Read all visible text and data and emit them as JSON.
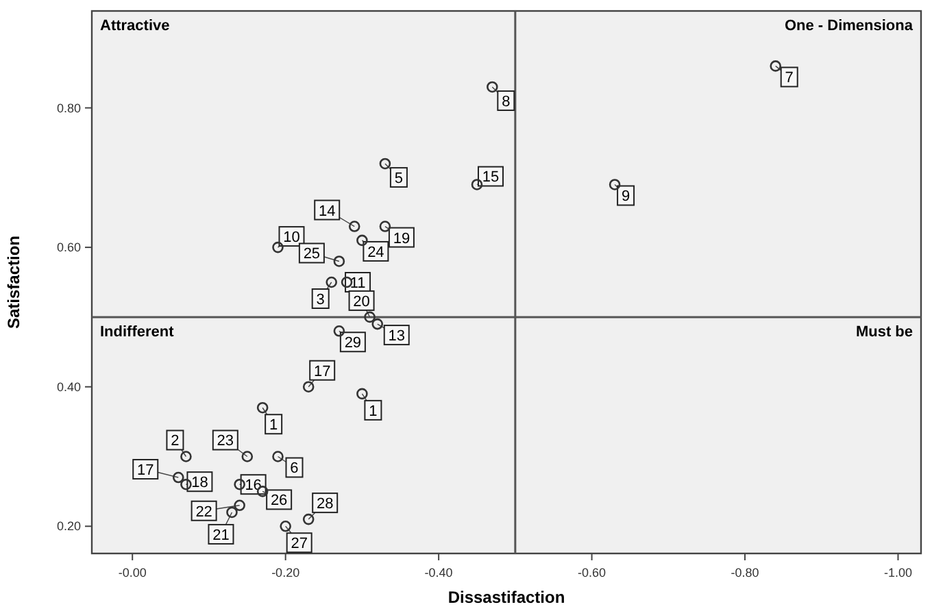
{
  "chart_data": {
    "type": "scatter",
    "xlabel": "Dissastifaction",
    "ylabel": "Satisfaction",
    "xlim": [
      0.053,
      -1.03
    ],
    "ylim": [
      0.161,
      0.939
    ],
    "xticks": [
      {
        "value": 0,
        "label": "-0.00"
      },
      {
        "value": -0.2,
        "label": "-0.20"
      },
      {
        "value": -0.4,
        "label": "-0.40"
      },
      {
        "value": -0.6,
        "label": "-0.60"
      },
      {
        "value": -0.8,
        "label": "-0.80"
      },
      {
        "value": -1,
        "label": "-1.00"
      }
    ],
    "yticks": [
      {
        "value": 0.2,
        "label": "0.20"
      },
      {
        "value": 0.4,
        "label": "0.40"
      },
      {
        "value": 0.6,
        "label": "0.60"
      },
      {
        "value": 0.8,
        "label": "0.80"
      }
    ],
    "marker": "circle",
    "grid": false,
    "series": [
      {
        "color": "#333333",
        "x": [
          -0.47,
          -0.33,
          -0.45,
          -0.29,
          -0.33,
          -0.19,
          -0.3,
          -0.27,
          -0.28,
          -0.26,
          -0.31,
          -0.32,
          -0.84,
          -0.63,
          -0.27,
          -0.23,
          -0.17,
          -0.3,
          -0.07,
          -0.06,
          -0.07,
          -0.15,
          -0.14,
          -0.19,
          -0.14,
          -0.13,
          -0.17,
          -0.23,
          -0.2
        ],
        "values": [
          0.83,
          0.72,
          0.69,
          0.63,
          0.63,
          0.6,
          0.61,
          0.58,
          0.55,
          0.55,
          0.5,
          0.49,
          0.86,
          0.69,
          0.48,
          0.4,
          0.37,
          0.39,
          0.3,
          0.27,
          0.26,
          0.3,
          0.26,
          0.3,
          0.23,
          0.22,
          0.25,
          0.21,
          0.2
        ]
      }
    ],
    "ref_lines": [
      {
        "axis": "x",
        "value": -0.5,
        "color": "#555555"
      },
      {
        "axis": "y",
        "value": 0.5,
        "color": "#555555"
      }
    ],
    "annotations": [
      "Attractive",
      "One - Dimensiona",
      "Indifferent",
      "Must be",
      {
        "text": "8",
        "x": -0.47,
        "y": 0.83
      },
      {
        "text": "5",
        "x": -0.33,
        "y": 0.72
      },
      {
        "text": "15",
        "x": -0.45,
        "y": 0.69
      },
      {
        "text": "14",
        "x": -0.29,
        "y": 0.63
      },
      {
        "text": "19",
        "x": -0.33,
        "y": 0.63
      },
      {
        "text": "10",
        "x": -0.19,
        "y": 0.6
      },
      {
        "text": "24",
        "x": -0.3,
        "y": 0.61
      },
      {
        "text": "25",
        "x": -0.27,
        "y": 0.58
      },
      {
        "text": "11",
        "x": -0.28,
        "y": 0.55
      },
      {
        "text": "3",
        "x": -0.26,
        "y": 0.55
      },
      {
        "text": "20",
        "x": -0.31,
        "y": 0.5
      },
      {
        "text": "13",
        "x": -0.32,
        "y": 0.49
      },
      {
        "text": "7",
        "x": -0.84,
        "y": 0.86
      },
      {
        "text": "9",
        "x": -0.63,
        "y": 0.69
      },
      {
        "text": "29",
        "x": -0.27,
        "y": 0.48
      },
      {
        "text": "17",
        "x": -0.23,
        "y": 0.4
      },
      {
        "text": "1",
        "x": -0.17,
        "y": 0.37
      },
      {
        "text": "1",
        "x": -0.3,
        "y": 0.39
      },
      {
        "text": "2",
        "x": -0.07,
        "y": 0.3
      },
      {
        "text": "17",
        "x": -0.06,
        "y": 0.27
      },
      {
        "text": "18",
        "x": -0.07,
        "y": 0.26
      },
      {
        "text": "23",
        "x": -0.15,
        "y": 0.3
      },
      {
        "text": "16",
        "x": -0.14,
        "y": 0.26
      },
      {
        "text": "6",
        "x": -0.19,
        "y": 0.3
      },
      {
        "text": "22",
        "x": -0.14,
        "y": 0.23
      },
      {
        "text": "21",
        "x": -0.13,
        "y": 0.22
      },
      {
        "text": "26",
        "x": -0.17,
        "y": 0.25
      },
      {
        "text": "28",
        "x": -0.23,
        "y": 0.21
      },
      {
        "text": "27",
        "x": -0.2,
        "y": 0.2
      }
    ]
  }
}
